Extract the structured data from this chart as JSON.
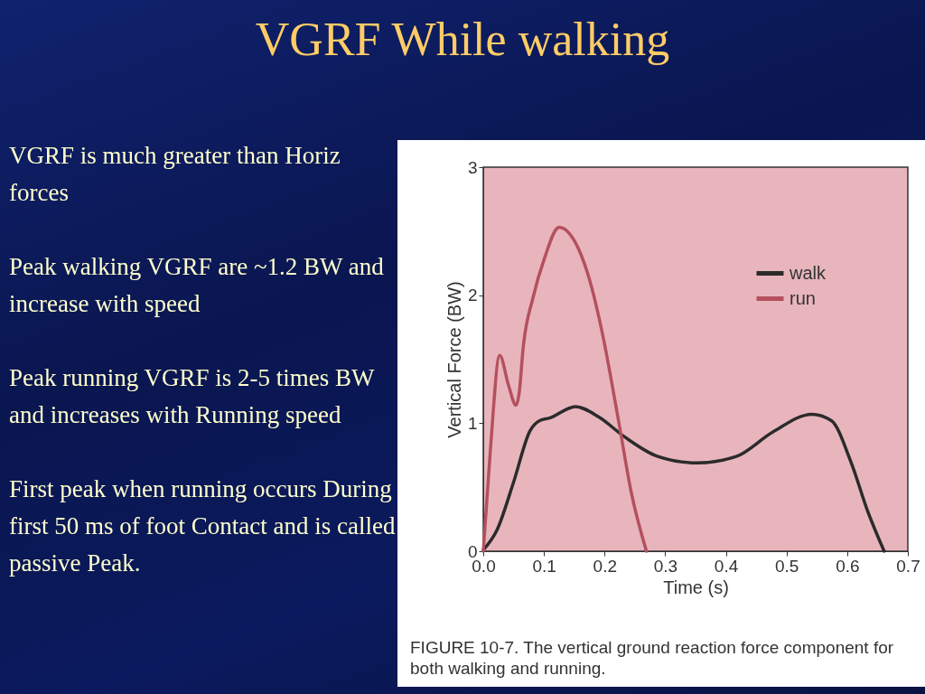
{
  "chart_data": {
    "type": "line",
    "title": "VGRF While walking",
    "xlabel": "Time (s)",
    "ylabel": "Vertical Force (BW)",
    "annotations": [
      "VGRF is much greater than Horiz forces",
      "Peak walking VGRF are ~1.2 BW and increase with speed",
      "Peak running VGRF is 2-5 times BW and increases with Running speed",
      "First peak when running occurs During first 50 ms of foot Contact and is called passive Peak.",
      "FIGURE 10-7. The vertical ground reaction force component for both walking and running."
    ],
    "series": [
      {
        "name": "walk",
        "color": "#2b2b2b",
        "x": [
          0,
          0.023,
          0.05,
          0.077,
          0.093,
          0.109,
          0.152,
          0.19,
          0.234,
          0.288,
          0.352,
          0.417,
          0.477,
          0.542,
          0.574,
          0.606,
          0.634,
          0.661
        ],
        "values": [
          0.01,
          0.17,
          0.54,
          0.94,
          1.02,
          1.04,
          1.13,
          1.05,
          0.89,
          0.74,
          0.69,
          0.74,
          0.93,
          1.07,
          1.02,
          0.7,
          0.31,
          0
        ]
      },
      {
        "name": "run",
        "color": "#b5505e",
        "x": [
          0,
          0.012,
          0.027,
          0.042,
          0.054,
          0.059,
          0.066,
          0.082,
          0.101,
          0.125,
          0.147,
          0.174,
          0.196,
          0.223,
          0.244,
          0.269
        ],
        "values": [
          0,
          0.81,
          1.53,
          1.29,
          1.14,
          1.23,
          1.6,
          1.98,
          2.29,
          2.53,
          2.45,
          2.14,
          1.71,
          1.02,
          0.46,
          0
        ]
      }
    ],
    "xlim": [
      0,
      0.7
    ],
    "xticks": [
      {
        "value": 0,
        "label": "0.0"
      },
      0.1,
      0.2,
      0.3,
      0.4,
      0.5,
      0.6,
      0.7
    ],
    "ylim": [
      0,
      3
    ],
    "yticks": [
      0,
      1,
      2,
      3
    ],
    "grid": false,
    "legend": "top right",
    "marker": "none",
    "line_style": "solid"
  }
}
